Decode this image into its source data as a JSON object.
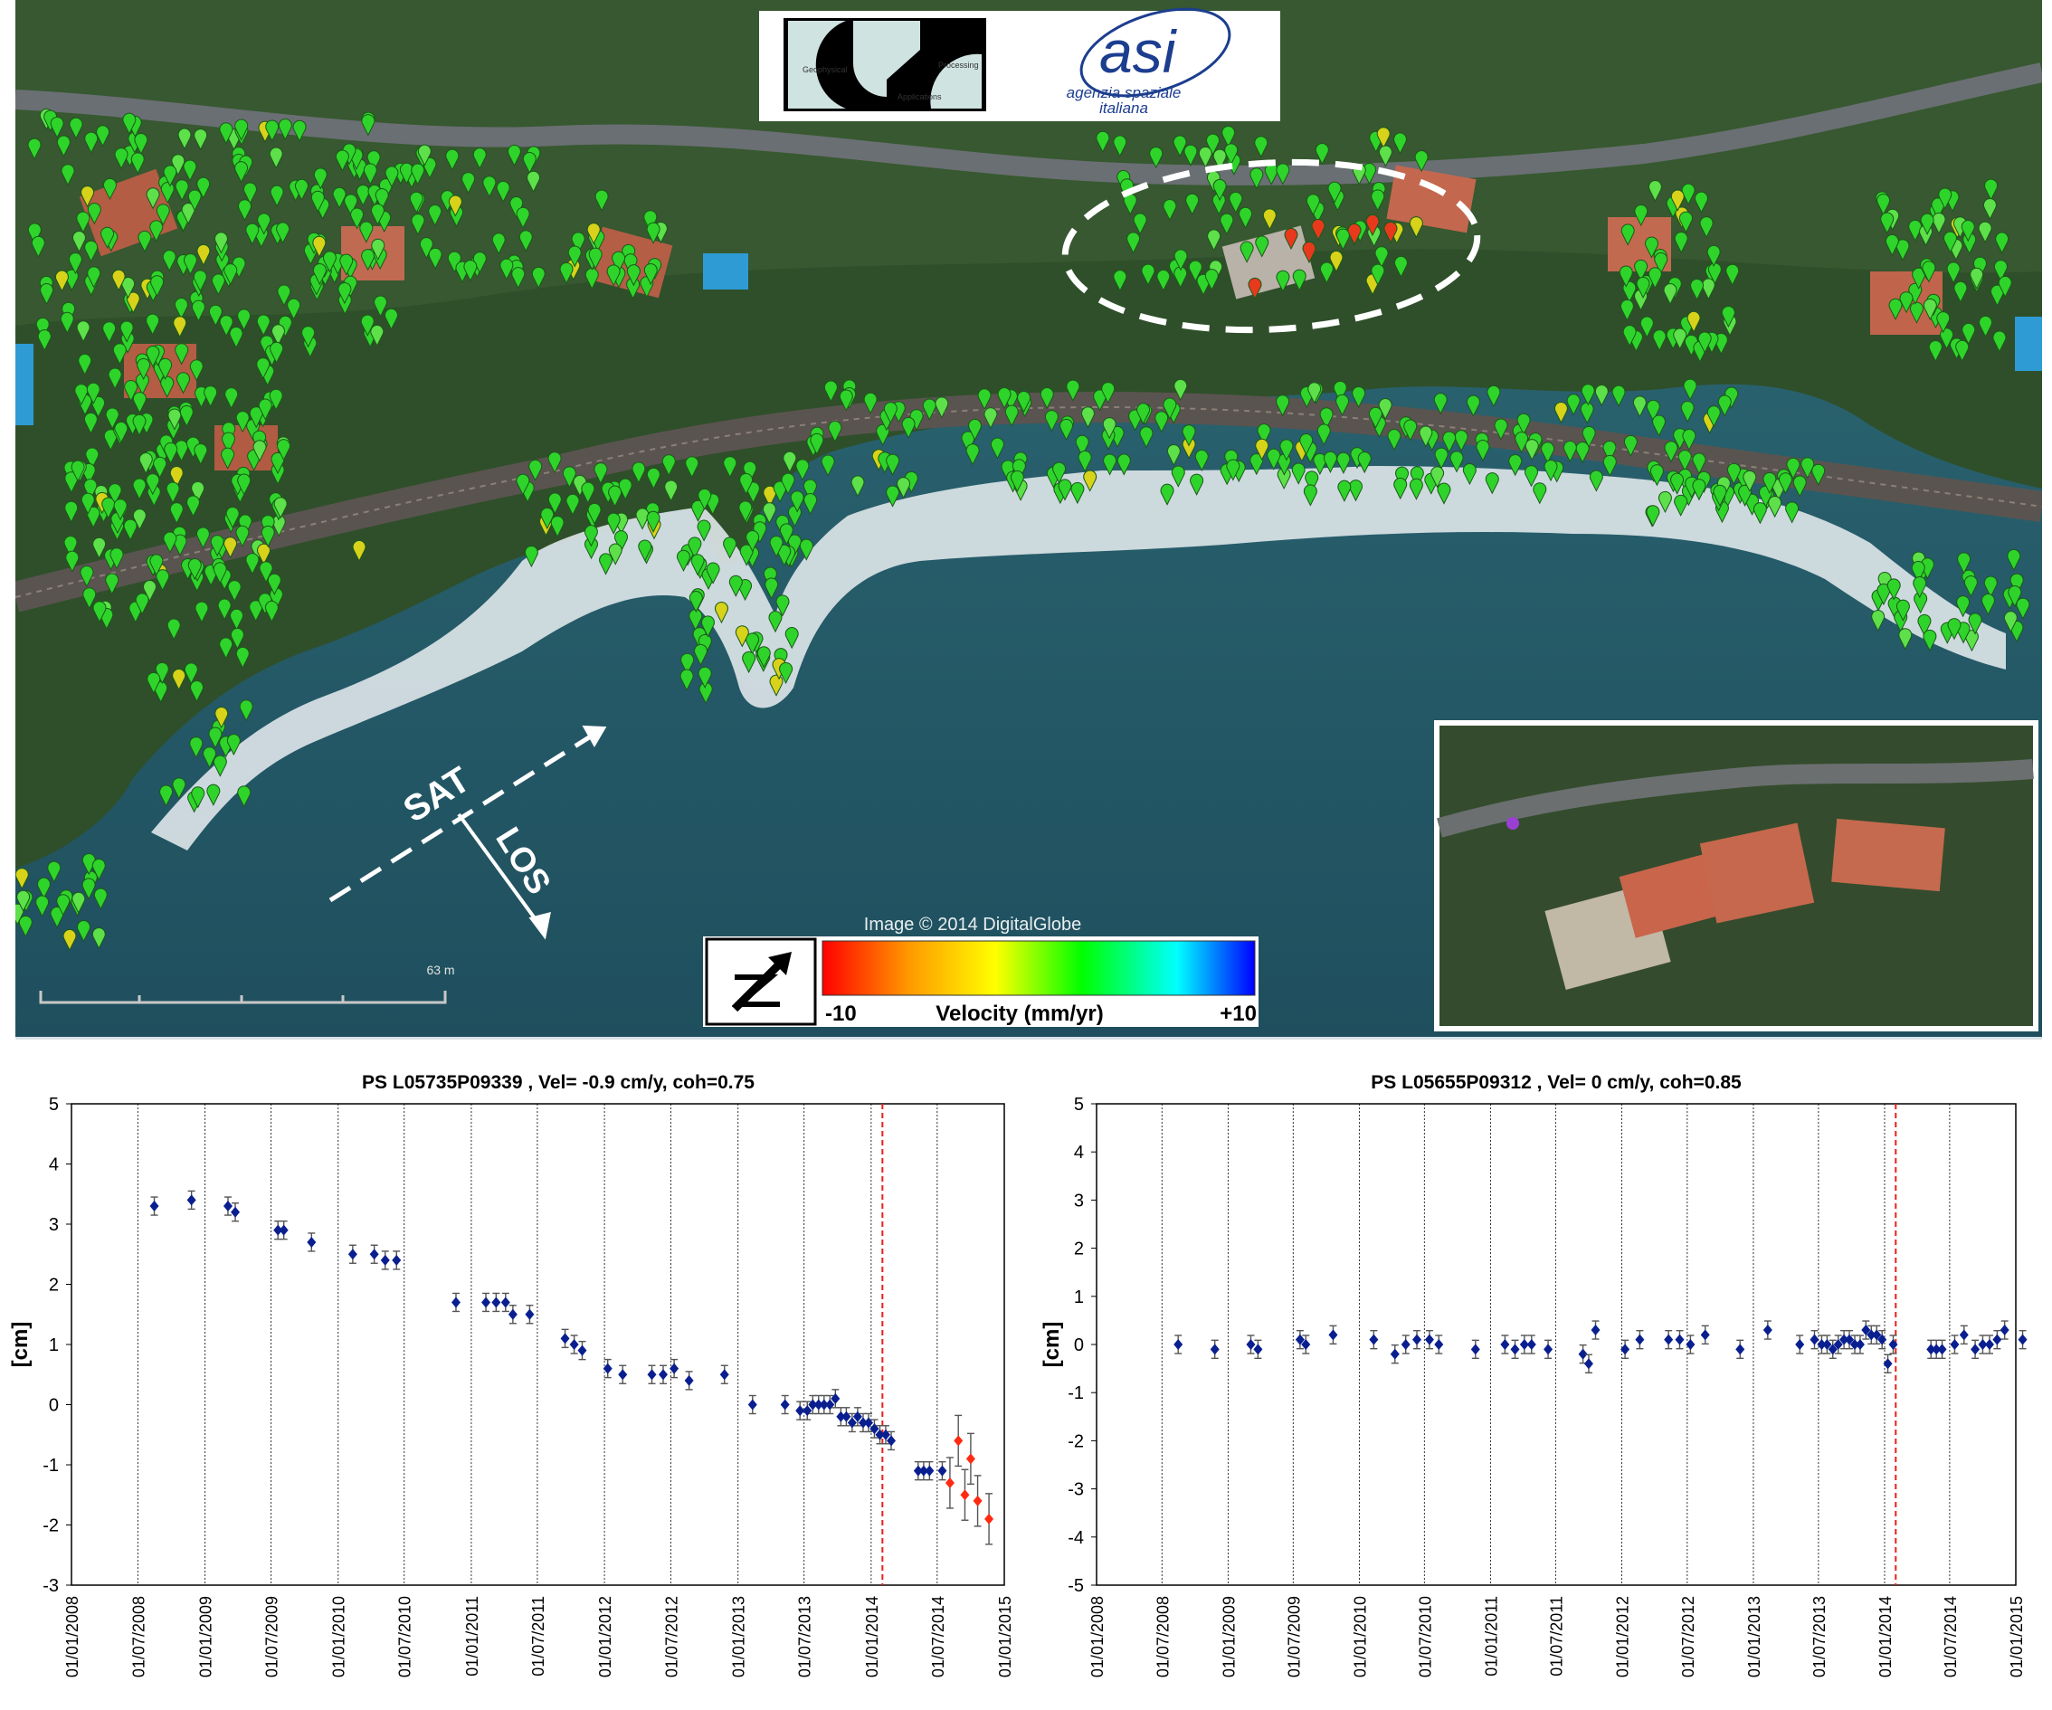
{
  "map": {
    "image_credit": "Image © 2014 DigitalGlobe",
    "scale_label": "63 m",
    "sat_label": "SAT",
    "los_label": "LOS",
    "legend": {
      "min_label": "-10",
      "max_label": "+10",
      "title": "Velocity (mm/yr)",
      "colors": [
        "#ff0000",
        "#ff9900",
        "#ffff00",
        "#00ff00",
        "#00ffff",
        "#0000ff"
      ]
    },
    "logo_agency_line1": "agenzia spaziale",
    "logo_agency_line2": "italiana",
    "logo_agency_mark": "asi",
    "logo_gap_words": [
      "Geophysical",
      "Applications",
      "Processing"
    ],
    "marker_colors": {
      "stable": "#2fd42b",
      "moving": "#e8391d",
      "slow": "#d8d21a"
    }
  },
  "chart_data": [
    {
      "type": "scatter",
      "title": "PS L05735P09339 , Vel= -0.9 cm/y, coh=0.75",
      "ylabel": "[cm]",
      "xlabel": "",
      "ylim": [
        -3,
        5
      ],
      "yticks": [
        "5",
        "4",
        "3",
        "2",
        "1",
        "0",
        "-1",
        "-2",
        "-3"
      ],
      "xticks": [
        "01/01/2008",
        "01/07/2008",
        "01/01/2009",
        "01/07/2009",
        "01/01/2010",
        "01/07/2010",
        "01/01/2011",
        "01/07/2011",
        "01/01/2012",
        "01/07/2012",
        "01/01/2013",
        "01/07/2013",
        "01/01/2014",
        "01/07/2014",
        "01/01/2015"
      ],
      "vline": "01/02/2014",
      "grid": "vertical",
      "series": [
        {
          "color": "#0a1f8f",
          "points": [
            [
              "2008-08-15",
              3.3
            ],
            [
              "2008-11-25",
              3.4
            ],
            [
              "2009-03-05",
              3.3
            ],
            [
              "2009-03-25",
              3.2
            ],
            [
              "2009-07-20",
              2.9
            ],
            [
              "2009-08-05",
              2.9
            ],
            [
              "2009-10-20",
              2.7
            ],
            [
              "2010-02-10",
              2.5
            ],
            [
              "2010-04-10",
              2.5
            ],
            [
              "2010-05-10",
              2.4
            ],
            [
              "2010-06-10",
              2.4
            ],
            [
              "2010-11-20",
              1.7
            ],
            [
              "2011-02-10",
              1.7
            ],
            [
              "2011-03-10",
              1.7
            ],
            [
              "2011-04-05",
              1.7
            ],
            [
              "2011-04-25",
              1.5
            ],
            [
              "2011-06-10",
              1.5
            ],
            [
              "2011-09-15",
              1.1
            ],
            [
              "2011-10-10",
              1.0
            ],
            [
              "2011-11-01",
              0.9
            ],
            [
              "2012-01-10",
              0.6
            ],
            [
              "2012-02-20",
              0.5
            ],
            [
              "2012-05-10",
              0.5
            ],
            [
              "2012-06-10",
              0.5
            ],
            [
              "2012-07-10",
              0.6
            ],
            [
              "2012-08-20",
              0.4
            ],
            [
              "2012-11-25",
              0.5
            ],
            [
              "2013-02-10",
              0.0
            ],
            [
              "2013-05-10",
              0.0
            ],
            [
              "2013-06-20",
              -0.1
            ],
            [
              "2013-07-10",
              -0.1
            ],
            [
              "2013-07-25",
              0.0
            ],
            [
              "2013-08-10",
              0.0
            ],
            [
              "2013-08-25",
              0.0
            ],
            [
              "2013-09-10",
              0.0
            ],
            [
              "2013-09-25",
              0.1
            ],
            [
              "2013-10-10",
              -0.2
            ],
            [
              "2013-10-25",
              -0.2
            ],
            [
              "2013-11-10",
              -0.3
            ],
            [
              "2013-11-25",
              -0.2
            ],
            [
              "2013-12-10",
              -0.3
            ],
            [
              "2013-12-25",
              -0.3
            ],
            [
              "2014-01-10",
              -0.4
            ],
            [
              "2014-01-25",
              -0.5
            ],
            [
              "2014-02-10",
              -0.5
            ],
            [
              "2014-02-25",
              -0.6
            ],
            [
              "2014-05-10",
              -1.1
            ],
            [
              "2014-05-25",
              -1.1
            ],
            [
              "2014-06-10",
              -1.1
            ],
            [
              "2014-07-15",
              -1.1
            ]
          ]
        },
        {
          "color": "#ff2a12",
          "points": [
            [
              "2014-08-05",
              -1.3
            ],
            [
              "2014-08-28",
              -0.6
            ],
            [
              "2014-09-15",
              -1.5
            ],
            [
              "2014-10-01",
              -0.9
            ],
            [
              "2014-10-20",
              -1.6
            ],
            [
              "2014-11-20",
              -1.9
            ]
          ]
        }
      ]
    },
    {
      "type": "scatter",
      "title": "PS L05655P09312  , Vel= 0 cm/y, coh=0.85",
      "ylabel": "[cm]",
      "xlabel": "",
      "ylim": [
        -5,
        5
      ],
      "yticks": [
        "5",
        "4",
        "3",
        "2",
        "1",
        "0",
        "-1",
        "-2",
        "-3",
        "-4",
        "-5"
      ],
      "xticks": [
        "01/01/2008",
        "01/07/2008",
        "01/01/2009",
        "01/07/2009",
        "01/01/2010",
        "01/07/2010",
        "01/01/2011",
        "01/07/2011",
        "01/01/2012",
        "01/07/2012",
        "01/01/2013",
        "01/07/2013",
        "01/01/2014",
        "01/07/2014",
        "01/01/2015"
      ],
      "vline": "01/02/2014",
      "grid": "vertical",
      "series": [
        {
          "color": "#0a1f8f",
          "points": [
            [
              "2008-08-15",
              0.0
            ],
            [
              "2008-11-25",
              -0.1
            ],
            [
              "2009-03-05",
              0.0
            ],
            [
              "2009-03-25",
              -0.1
            ],
            [
              "2009-07-20",
              0.1
            ],
            [
              "2009-08-05",
              0.0
            ],
            [
              "2009-10-20",
              0.2
            ],
            [
              "2010-02-10",
              0.1
            ],
            [
              "2010-04-10",
              -0.2
            ],
            [
              "2010-05-10",
              0.0
            ],
            [
              "2010-06-10",
              0.1
            ],
            [
              "2010-07-15",
              0.1
            ],
            [
              "2010-08-10",
              0.0
            ],
            [
              "2010-11-20",
              -0.1
            ],
            [
              "2011-02-10",
              0.0
            ],
            [
              "2011-03-10",
              -0.1
            ],
            [
              "2011-04-05",
              0.0
            ],
            [
              "2011-04-25",
              0.0
            ],
            [
              "2011-06-10",
              -0.1
            ],
            [
              "2011-09-15",
              -0.2
            ],
            [
              "2011-10-01",
              -0.4
            ],
            [
              "2011-10-20",
              0.3
            ],
            [
              "2012-01-10",
              -0.1
            ],
            [
              "2012-02-20",
              0.1
            ],
            [
              "2012-05-10",
              0.1
            ],
            [
              "2012-06-10",
              0.1
            ],
            [
              "2012-07-10",
              0.0
            ],
            [
              "2012-08-20",
              0.2
            ],
            [
              "2012-11-25",
              -0.1
            ],
            [
              "2013-02-10",
              0.3
            ],
            [
              "2013-05-10",
              0.0
            ],
            [
              "2013-06-20",
              0.1
            ],
            [
              "2013-07-10",
              0.0
            ],
            [
              "2013-07-25",
              0.0
            ],
            [
              "2013-08-10",
              -0.1
            ],
            [
              "2013-08-25",
              0.0
            ],
            [
              "2013-09-10",
              0.1
            ],
            [
              "2013-09-25",
              0.1
            ],
            [
              "2013-10-10",
              0.0
            ],
            [
              "2013-10-25",
              0.0
            ],
            [
              "2013-11-10",
              0.3
            ],
            [
              "2013-11-25",
              0.2
            ],
            [
              "2013-12-10",
              0.2
            ],
            [
              "2013-12-25",
              0.1
            ],
            [
              "2014-01-10",
              -0.4
            ],
            [
              "2014-01-25",
              0.0
            ],
            [
              "2014-05-10",
              -0.1
            ],
            [
              "2014-05-25",
              -0.1
            ],
            [
              "2014-06-10",
              -0.1
            ],
            [
              "2014-07-15",
              0.0
            ],
            [
              "2014-08-10",
              0.2
            ],
            [
              "2014-09-10",
              -0.1
            ],
            [
              "2014-10-01",
              0.0
            ],
            [
              "2014-10-20",
              0.0
            ],
            [
              "2014-11-10",
              0.1
            ],
            [
              "2014-12-01",
              0.3
            ],
            [
              "2015-01-20",
              0.1
            ]
          ]
        }
      ]
    }
  ]
}
